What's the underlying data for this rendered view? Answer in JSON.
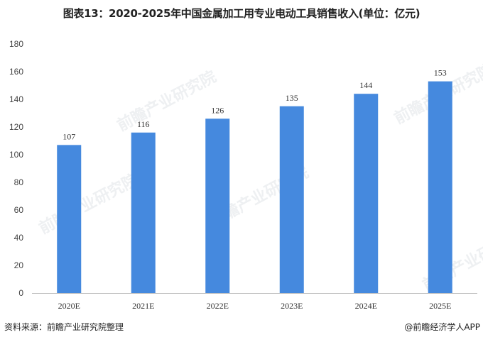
{
  "chart_data": {
    "type": "bar",
    "title": "图表13：2020-2025年中国金属加工用专业电动工具销售收入(单位：亿元)",
    "categories": [
      "2020E",
      "2021E",
      "2022E",
      "2023E",
      "2024E",
      "2025E"
    ],
    "values": [
      107,
      116,
      126,
      135,
      144,
      153
    ],
    "ylim": [
      0,
      180
    ],
    "yticks": [
      0,
      20,
      40,
      60,
      80,
      100,
      120,
      140,
      160,
      180
    ],
    "xlabel": "",
    "ylabel": "",
    "grid": false,
    "legend": "none",
    "bar_color": "#4589DE"
  },
  "footer": {
    "source": "资料来源：前瞻产业研究院整理",
    "credit": "@前瞻经济学人APP"
  },
  "watermark": "前瞻产业研究院"
}
